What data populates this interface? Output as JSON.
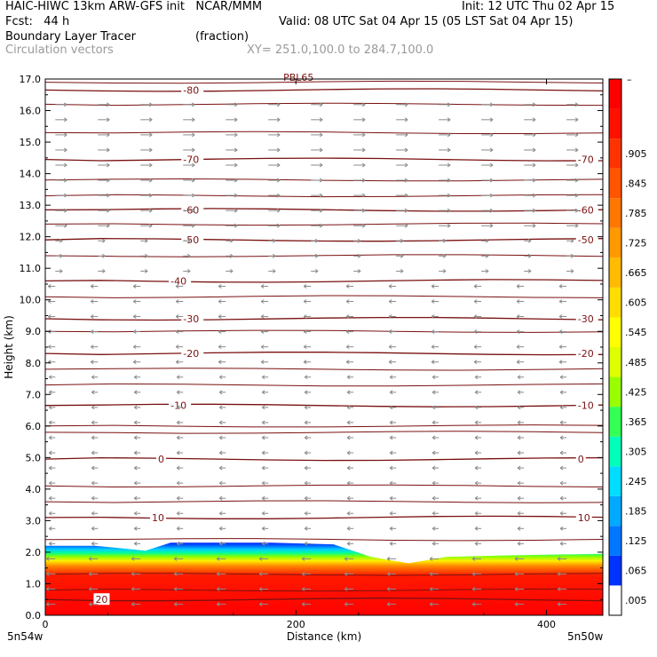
{
  "header": {
    "title_left": "HAIC-HIWC 13km ARW-GFS init   NCAR/MMM",
    "init": "Init: 12 UTC Thu 02 Apr 15",
    "fcst": "Fcst:   44 h",
    "valid": "Valid: 08 UTC Sat 04 Apr 15 (05 LST Sat 04 Apr 15)",
    "field": "Boundary Layer Tracer",
    "units": "(fraction)",
    "vectors": "Circulation vectors",
    "xy": "XY= 251.0,100.0 to 284.7,100.0"
  },
  "colors": {
    "contour": "#7a1010",
    "vector": "#8a8a8a",
    "palette": [
      "#ffffff",
      "#0033ff",
      "#0077ff",
      "#00aaff",
      "#00ddff",
      "#00ffbb",
      "#33ff55",
      "#99ff00",
      "#ddff00",
      "#ffff00",
      "#ffdd00",
      "#ffbb00",
      "#ff9900",
      "#ff7700",
      "#ff5500",
      "#ff3300",
      "#ff1100",
      "#ff0000"
    ]
  },
  "chart_data": {
    "type": "cross-section",
    "xlabel": "Distance (km)",
    "ylabel": "Height (km)",
    "xlim": [
      0,
      445
    ],
    "ylim": [
      0,
      17
    ],
    "xticks": [
      {
        "v": 0,
        "label": "0"
      },
      {
        "v": 200,
        "label": "200"
      },
      {
        "v": 400,
        "label": "400"
      }
    ],
    "yticks": [
      "0.0",
      "1.0",
      "2.0",
      "3.0",
      "4.0",
      "5.0",
      "6.0",
      "7.0",
      "8.0",
      "9.0",
      "10.0",
      "11.0",
      "12.0",
      "13.0",
      "14.0",
      "15.0",
      "16.0",
      "17.0"
    ],
    "endpoint_left": "5n54w",
    "endpoint_right": "5n50w",
    "colorbar_labels": [
      ".005",
      ".065",
      ".125",
      ".185",
      ".245",
      ".305",
      ".365",
      ".425",
      ".485",
      ".545",
      ".605",
      ".665",
      ".725",
      ".785",
      ".845",
      ".905"
    ],
    "colorbar_top_label": "–",
    "pbl_label": "PBL65",
    "tracer_top_km": [
      {
        "x": 0,
        "y": 2.2
      },
      {
        "x": 40,
        "y": 2.2
      },
      {
        "x": 80,
        "y": 2.05
      },
      {
        "x": 100,
        "y": 2.3
      },
      {
        "x": 180,
        "y": 2.3
      },
      {
        "x": 230,
        "y": 2.25
      },
      {
        "x": 260,
        "y": 1.85
      },
      {
        "x": 290,
        "y": 1.65
      },
      {
        "x": 320,
        "y": 1.85
      },
      {
        "x": 370,
        "y": 1.9
      },
      {
        "x": 445,
        "y": 1.95
      }
    ],
    "temperature_contours": [
      {
        "label": "-80",
        "km": 16.65,
        "left": "-80",
        "right": "-80",
        "label_x": [
          110
        ]
      },
      {
        "label": "-70",
        "km": 14.45,
        "left": "-70",
        "right": "-70",
        "label_x": [
          110,
          425
        ]
      },
      {
        "label": "-60",
        "km": 12.85,
        "left": "-60",
        "right": "-60",
        "label_x": [
          110,
          425
        ]
      },
      {
        "label": "-50",
        "km": 11.9,
        "left": "-50",
        "right": "-50",
        "label_x": [
          110,
          425
        ]
      },
      {
        "label": "-40",
        "km": 10.6,
        "left": "-40",
        "right": "",
        "label_x": [
          100
        ]
      },
      {
        "label": "-30",
        "km": 9.4,
        "left": "-30",
        "right": "-30",
        "label_x": [
          110,
          425
        ]
      },
      {
        "label": "-20",
        "km": 8.3,
        "left": "-20",
        "right": "-20",
        "label_x": [
          110,
          425
        ]
      },
      {
        "label": "-10",
        "km": 6.65,
        "left": "-10",
        "right": "-10",
        "label_x": [
          100,
          425
        ]
      },
      {
        "label": "0",
        "km": 4.95,
        "left": "0",
        "right": "0",
        "label_x": [
          90,
          425
        ]
      },
      {
        "label": "10",
        "km": 3.1,
        "left": "10",
        "right": "10",
        "label_x": [
          85,
          425
        ]
      },
      {
        "label": "20",
        "km": 0.5,
        "left": "20",
        "right": "",
        "label_x": [
          40
        ]
      }
    ],
    "isentrope_km": [
      16.9,
      16.2,
      15.3,
      13.8,
      13.3,
      12.4,
      11.4,
      10.1,
      9.0,
      7.8,
      7.3,
      6.0,
      5.8,
      4.1,
      3.6,
      2.4,
      1.3,
      0.8
    ]
  }
}
